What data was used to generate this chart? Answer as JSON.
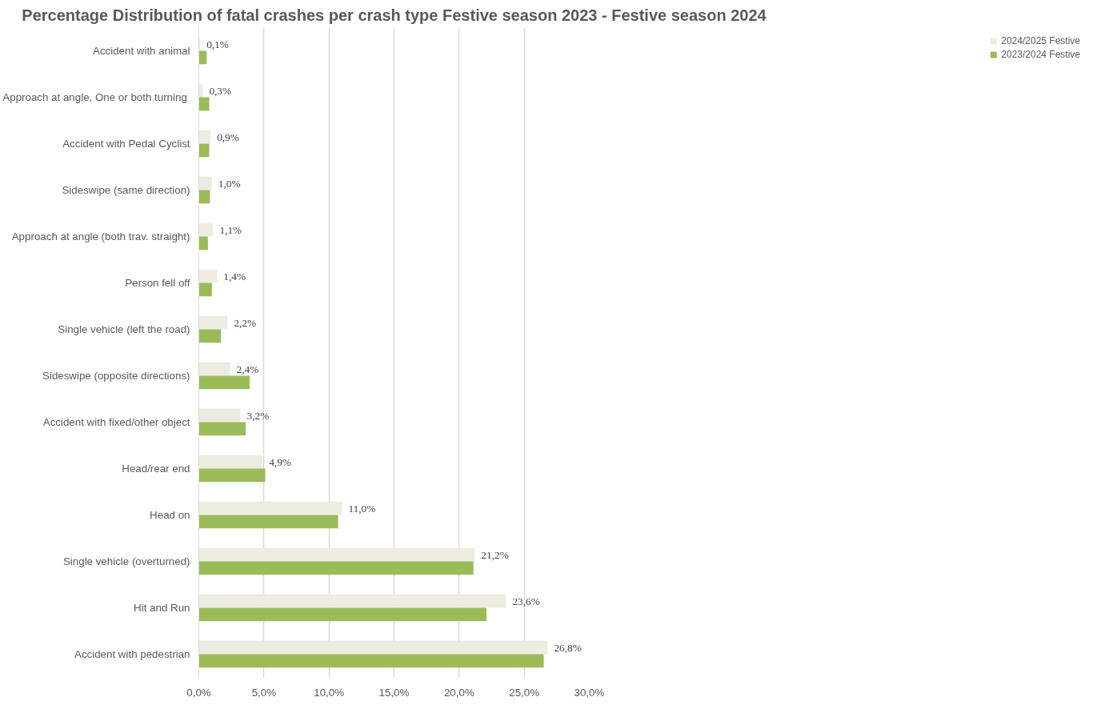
{
  "chart_data": {
    "type": "bar",
    "orientation": "horizontal",
    "title": "Percentage Distribution of fatal crashes per crash type Festive season 2023 - Festive season 2024",
    "categories": [
      "Accident with animal",
      "Approach at angle,  One or both turning",
      "Accident with Pedal Cyclist",
      "Sideswipe (same direction)",
      "Approach at angle (both trav. straight)",
      "Person fell off",
      "Single vehicle (left the road)",
      "Sideswipe (opposite directions)",
      "Accident with fixed/other object",
      "Head/rear end",
      "Head on",
      "Single vehicle (overturned)",
      "Hit and Run",
      "Accident with pedestrian"
    ],
    "series": [
      {
        "name": "2024/2025 Festive",
        "color": "#eeece1",
        "values": [
          0.1,
          0.3,
          0.9,
          1.0,
          1.1,
          1.4,
          2.2,
          2.4,
          3.2,
          4.9,
          11.0,
          21.2,
          23.6,
          26.8
        ],
        "value_labels": [
          "0,1%",
          "0,3%",
          "0,9%",
          "1,0%",
          "1,1%",
          "1,4%",
          "2,2%",
          "2,4%",
          "3,2%",
          "4,9%",
          "11,0%",
          "21,2%",
          "23,6%",
          "26,8%"
        ]
      },
      {
        "name": "2023/2024 Festive",
        "color": "#9bbb59",
        "values": [
          0.6,
          0.8,
          0.8,
          0.85,
          0.7,
          1.0,
          1.7,
          3.9,
          3.6,
          5.1,
          10.7,
          21.1,
          22.1,
          26.5
        ]
      }
    ],
    "xlim": [
      0,
      30
    ],
    "xticks": [
      {
        "value": 0,
        "label": "0,0%"
      },
      {
        "value": 5,
        "label": "5,0%"
      },
      {
        "value": 10,
        "label": "10,0%"
      },
      {
        "value": 15,
        "label": "15,0%"
      },
      {
        "value": 20,
        "label": "20,0%"
      },
      {
        "value": 25,
        "label": "25,0%"
      },
      {
        "value": 30,
        "label": "30,0%"
      }
    ],
    "grid": "x",
    "legend": "right"
  }
}
